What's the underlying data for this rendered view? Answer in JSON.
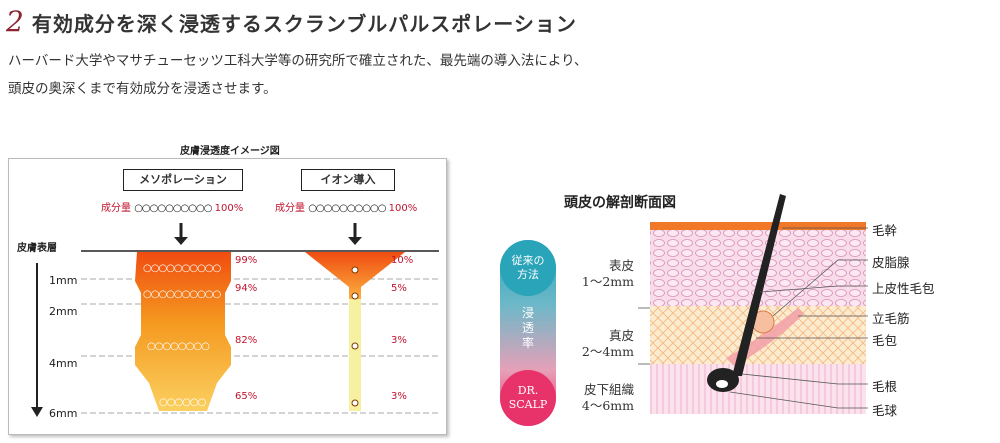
{
  "heading": {
    "number": "2",
    "title": "有効成分を深く浸透するスクランブルパルスポレーション"
  },
  "description": {
    "line1": "ハーバード大学やマサチューセッツ工科大学等の研究所で確立された、最先端の導入法により、",
    "line2": "頭皮の奥深くまで有効成分を浸透させます。"
  },
  "left_figure": {
    "title": "皮膚浸透度イメージ図",
    "method_meso": "メソポレーション",
    "method_ion": "イオン導入",
    "ingredient_label": "成分量",
    "dots": "○○○○○○○○○○",
    "full_percent": "100%",
    "skin_surface": "皮膚表層",
    "depths": [
      "1mm",
      "2mm",
      "4mm",
      "6mm"
    ],
    "meso_percents": [
      "99%",
      "94%",
      "82%",
      "65%"
    ],
    "ion_percents": [
      "10%",
      "5%",
      "3%",
      "3%"
    ]
  },
  "right_figure": {
    "title": "頭皮の解剖断面図",
    "pill_top": [
      "従来の",
      "方法"
    ],
    "pill_mid": [
      "浸",
      "透",
      "率"
    ],
    "pill_bottom": [
      "DR.",
      "SCALP"
    ],
    "layers": [
      {
        "name": "表皮",
        "range": "1〜2mm"
      },
      {
        "name": "真皮",
        "range": "2〜4mm"
      },
      {
        "name": "皮下組織",
        "range": "4〜6mm"
      }
    ],
    "callouts": [
      "毛幹",
      "皮脂腺",
      "上皮性毛包",
      "立毛筋",
      "毛包",
      "毛根",
      "毛球"
    ]
  },
  "colors": {
    "accent_red": "#c0142e",
    "heading_number": "#8b2430",
    "teal": "#2aa4b8",
    "pink": "#e8336a",
    "orange": "#f08020"
  }
}
